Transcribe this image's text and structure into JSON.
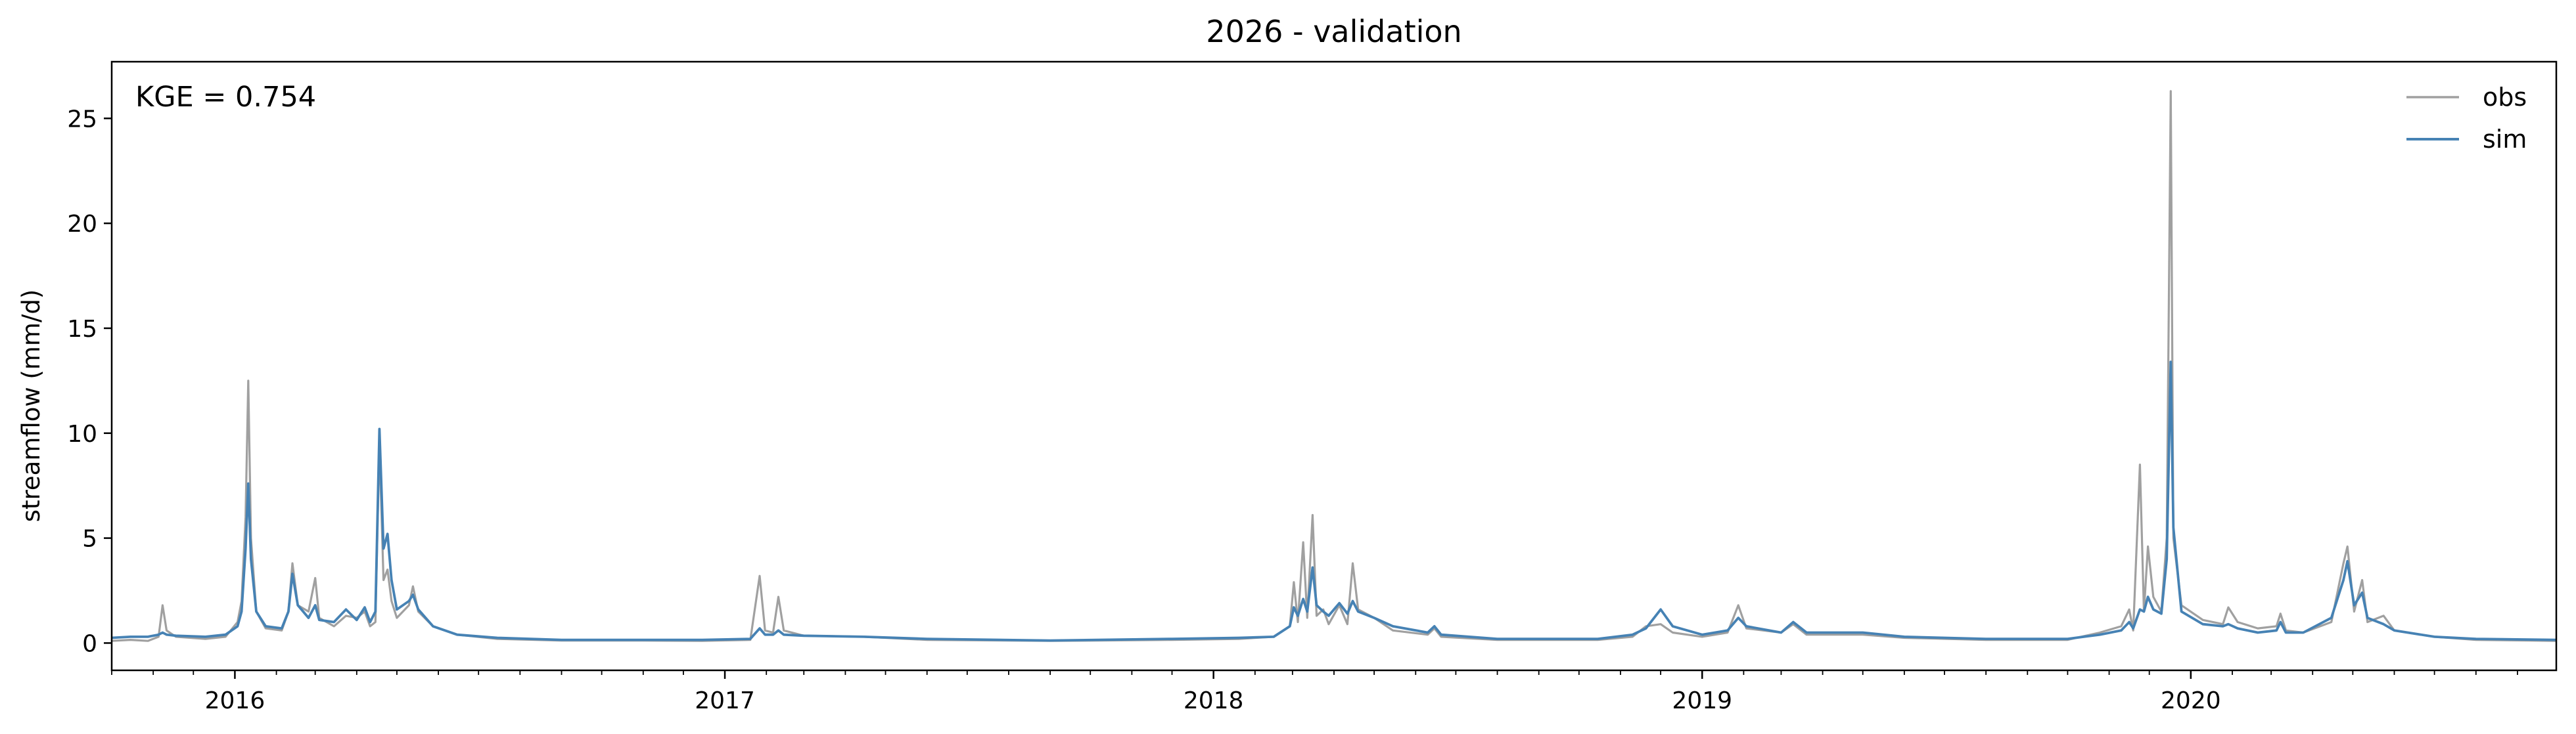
{
  "chart_data": {
    "type": "line",
    "title": "2026 - validation",
    "xlabel": "",
    "ylabel": "streamflow (mm/d)",
    "annotation": "KGE = 0.754",
    "xlim": [
      "2015-10-01",
      "2020-09-30"
    ],
    "ylim": [
      -1.3,
      27.7
    ],
    "y_ticks": [
      0,
      5,
      10,
      15,
      20,
      25
    ],
    "x_major_ticks": [
      "2016-01-01",
      "2017-01-01",
      "2018-01-01",
      "2019-01-01",
      "2020-01-01"
    ],
    "x_major_labels": [
      "2016",
      "2017",
      "2018",
      "2019",
      "2020"
    ],
    "x_minor_tick_months": [
      1,
      2,
      3,
      4,
      5,
      6,
      7,
      8,
      9,
      10,
      11,
      12
    ],
    "grid": false,
    "legend_location": "top-right",
    "series": [
      {
        "name": "obs",
        "color": "#a0a0a0",
        "points": [
          [
            "2015-10-01",
            0.1
          ],
          [
            "2015-10-15",
            0.15
          ],
          [
            "2015-10-28",
            0.1
          ],
          [
            "2015-11-05",
            0.3
          ],
          [
            "2015-11-08",
            1.8
          ],
          [
            "2015-11-11",
            0.6
          ],
          [
            "2015-11-18",
            0.3
          ],
          [
            "2015-12-10",
            0.2
          ],
          [
            "2015-12-25",
            0.3
          ],
          [
            "2016-01-03",
            1.0
          ],
          [
            "2016-01-06",
            2.0
          ],
          [
            "2016-01-09",
            6.0
          ],
          [
            "2016-01-11",
            12.5
          ],
          [
            "2016-01-13",
            5.0
          ],
          [
            "2016-01-17",
            1.5
          ],
          [
            "2016-01-24",
            0.7
          ],
          [
            "2016-02-05",
            0.6
          ],
          [
            "2016-02-10",
            1.5
          ],
          [
            "2016-02-13",
            3.8
          ],
          [
            "2016-02-17",
            1.8
          ],
          [
            "2016-02-25",
            1.5
          ],
          [
            "2016-03-01",
            3.1
          ],
          [
            "2016-03-04",
            1.2
          ],
          [
            "2016-03-15",
            0.8
          ],
          [
            "2016-03-24",
            1.3
          ],
          [
            "2016-04-01",
            1.2
          ],
          [
            "2016-04-07",
            1.5
          ],
          [
            "2016-04-11",
            0.8
          ],
          [
            "2016-04-15",
            1.0
          ],
          [
            "2016-04-18",
            9.5
          ],
          [
            "2016-04-21",
            3.0
          ],
          [
            "2016-04-24",
            3.5
          ],
          [
            "2016-04-27",
            2.0
          ],
          [
            "2016-05-01",
            1.2
          ],
          [
            "2016-05-10",
            1.8
          ],
          [
            "2016-05-13",
            2.7
          ],
          [
            "2016-05-17",
            1.5
          ],
          [
            "2016-05-28",
            0.8
          ],
          [
            "2016-06-15",
            0.4
          ],
          [
            "2016-07-15",
            0.2
          ],
          [
            "2016-09-01",
            0.12
          ],
          [
            "2016-11-01",
            0.12
          ],
          [
            "2016-12-15",
            0.1
          ],
          [
            "2017-01-20",
            0.15
          ],
          [
            "2017-01-27",
            3.2
          ],
          [
            "2017-01-31",
            0.6
          ],
          [
            "2017-02-06",
            0.5
          ],
          [
            "2017-02-10",
            2.2
          ],
          [
            "2017-02-14",
            0.6
          ],
          [
            "2017-03-01",
            0.35
          ],
          [
            "2017-04-15",
            0.3
          ],
          [
            "2017-06-01",
            0.15
          ],
          [
            "2017-09-01",
            0.1
          ],
          [
            "2017-12-01",
            0.15
          ],
          [
            "2018-01-20",
            0.2
          ],
          [
            "2018-02-15",
            0.3
          ],
          [
            "2018-02-27",
            0.8
          ],
          [
            "2018-03-02",
            2.9
          ],
          [
            "2018-03-05",
            1.0
          ],
          [
            "2018-03-09",
            4.8
          ],
          [
            "2018-03-12",
            1.2
          ],
          [
            "2018-03-16",
            6.1
          ],
          [
            "2018-03-19",
            1.3
          ],
          [
            "2018-03-24",
            1.6
          ],
          [
            "2018-03-28",
            0.9
          ],
          [
            "2018-04-05",
            1.8
          ],
          [
            "2018-04-11",
            0.9
          ],
          [
            "2018-04-15",
            3.8
          ],
          [
            "2018-04-19",
            1.6
          ],
          [
            "2018-05-01",
            1.2
          ],
          [
            "2018-05-15",
            0.6
          ],
          [
            "2018-06-10",
            0.4
          ],
          [
            "2018-06-15",
            0.7
          ],
          [
            "2018-06-20",
            0.3
          ],
          [
            "2018-08-01",
            0.15
          ],
          [
            "2018-10-15",
            0.15
          ],
          [
            "2018-11-10",
            0.3
          ],
          [
            "2018-11-20",
            0.8
          ],
          [
            "2018-12-01",
            0.9
          ],
          [
            "2018-12-10",
            0.5
          ],
          [
            "2019-01-01",
            0.3
          ],
          [
            "2019-01-20",
            0.5
          ],
          [
            "2019-01-28",
            1.8
          ],
          [
            "2019-02-03",
            0.7
          ],
          [
            "2019-03-01",
            0.5
          ],
          [
            "2019-03-10",
            0.9
          ],
          [
            "2019-03-20",
            0.4
          ],
          [
            "2019-05-01",
            0.4
          ],
          [
            "2019-06-01",
            0.25
          ],
          [
            "2019-08-01",
            0.15
          ],
          [
            "2019-10-01",
            0.15
          ],
          [
            "2019-10-25",
            0.5
          ],
          [
            "2019-11-10",
            0.8
          ],
          [
            "2019-11-16",
            1.6
          ],
          [
            "2019-11-19",
            0.6
          ],
          [
            "2019-11-24",
            8.5
          ],
          [
            "2019-11-27",
            1.5
          ],
          [
            "2019-11-30",
            4.6
          ],
          [
            "2019-12-04",
            2.2
          ],
          [
            "2019-12-10",
            1.5
          ],
          [
            "2019-12-14",
            5.0
          ],
          [
            "2019-12-17",
            26.3
          ],
          [
            "2019-12-19",
            5.0
          ],
          [
            "2019-12-25",
            1.8
          ],
          [
            "2020-01-10",
            1.1
          ],
          [
            "2020-01-25",
            0.9
          ],
          [
            "2020-01-29",
            1.7
          ],
          [
            "2020-02-05",
            1.0
          ],
          [
            "2020-02-20",
            0.7
          ],
          [
            "2020-03-05",
            0.8
          ],
          [
            "2020-03-08",
            1.4
          ],
          [
            "2020-03-12",
            0.6
          ],
          [
            "2020-03-25",
            0.5
          ],
          [
            "2020-04-15",
            1.0
          ],
          [
            "2020-04-24",
            3.8
          ],
          [
            "2020-04-27",
            4.6
          ],
          [
            "2020-05-02",
            1.5
          ],
          [
            "2020-05-08",
            3.0
          ],
          [
            "2020-05-12",
            1.0
          ],
          [
            "2020-05-24",
            1.3
          ],
          [
            "2020-06-01",
            0.6
          ],
          [
            "2020-07-01",
            0.3
          ],
          [
            "2020-08-01",
            0.15
          ],
          [
            "2020-09-30",
            0.1
          ]
        ]
      },
      {
        "name": "sim",
        "color": "#4682b4",
        "points": [
          [
            "2015-10-01",
            0.25
          ],
          [
            "2015-10-15",
            0.3
          ],
          [
            "2015-10-28",
            0.3
          ],
          [
            "2015-11-05",
            0.4
          ],
          [
            "2015-11-08",
            0.5
          ],
          [
            "2015-11-11",
            0.4
          ],
          [
            "2015-11-18",
            0.35
          ],
          [
            "2015-12-10",
            0.3
          ],
          [
            "2015-12-25",
            0.4
          ],
          [
            "2016-01-03",
            0.8
          ],
          [
            "2016-01-06",
            1.5
          ],
          [
            "2016-01-09",
            4.5
          ],
          [
            "2016-01-11",
            7.6
          ],
          [
            "2016-01-13",
            4.0
          ],
          [
            "2016-01-17",
            1.5
          ],
          [
            "2016-01-24",
            0.8
          ],
          [
            "2016-02-05",
            0.7
          ],
          [
            "2016-02-10",
            1.5
          ],
          [
            "2016-02-13",
            3.3
          ],
          [
            "2016-02-17",
            1.8
          ],
          [
            "2016-02-25",
            1.2
          ],
          [
            "2016-03-01",
            1.8
          ],
          [
            "2016-03-04",
            1.1
          ],
          [
            "2016-03-15",
            1.0
          ],
          [
            "2016-03-24",
            1.6
          ],
          [
            "2016-04-01",
            1.1
          ],
          [
            "2016-04-07",
            1.7
          ],
          [
            "2016-04-11",
            1.0
          ],
          [
            "2016-04-15",
            1.5
          ],
          [
            "2016-04-18",
            10.2
          ],
          [
            "2016-04-21",
            4.5
          ],
          [
            "2016-04-24",
            5.2
          ],
          [
            "2016-04-27",
            3.0
          ],
          [
            "2016-05-01",
            1.6
          ],
          [
            "2016-05-10",
            2.0
          ],
          [
            "2016-05-13",
            2.3
          ],
          [
            "2016-05-17",
            1.6
          ],
          [
            "2016-05-28",
            0.8
          ],
          [
            "2016-06-15",
            0.4
          ],
          [
            "2016-07-15",
            0.25
          ],
          [
            "2016-09-01",
            0.15
          ],
          [
            "2016-11-01",
            0.15
          ],
          [
            "2016-12-15",
            0.15
          ],
          [
            "2017-01-20",
            0.2
          ],
          [
            "2017-01-27",
            0.7
          ],
          [
            "2017-01-31",
            0.4
          ],
          [
            "2017-02-06",
            0.4
          ],
          [
            "2017-02-10",
            0.6
          ],
          [
            "2017-02-14",
            0.4
          ],
          [
            "2017-03-01",
            0.35
          ],
          [
            "2017-04-15",
            0.3
          ],
          [
            "2017-06-01",
            0.2
          ],
          [
            "2017-09-01",
            0.12
          ],
          [
            "2017-12-01",
            0.2
          ],
          [
            "2018-01-20",
            0.25
          ],
          [
            "2018-02-15",
            0.3
          ],
          [
            "2018-02-27",
            0.8
          ],
          [
            "2018-03-02",
            1.7
          ],
          [
            "2018-03-05",
            1.3
          ],
          [
            "2018-03-09",
            2.1
          ],
          [
            "2018-03-12",
            1.5
          ],
          [
            "2018-03-16",
            3.6
          ],
          [
            "2018-03-19",
            1.8
          ],
          [
            "2018-03-24",
            1.5
          ],
          [
            "2018-03-28",
            1.3
          ],
          [
            "2018-04-05",
            1.9
          ],
          [
            "2018-04-11",
            1.4
          ],
          [
            "2018-04-15",
            2.0
          ],
          [
            "2018-04-19",
            1.5
          ],
          [
            "2018-05-01",
            1.2
          ],
          [
            "2018-05-15",
            0.8
          ],
          [
            "2018-06-10",
            0.5
          ],
          [
            "2018-06-15",
            0.8
          ],
          [
            "2018-06-20",
            0.4
          ],
          [
            "2018-08-01",
            0.2
          ],
          [
            "2018-10-15",
            0.2
          ],
          [
            "2018-11-10",
            0.4
          ],
          [
            "2018-11-20",
            0.7
          ],
          [
            "2018-12-01",
            1.6
          ],
          [
            "2018-12-10",
            0.8
          ],
          [
            "2019-01-01",
            0.4
          ],
          [
            "2019-01-20",
            0.6
          ],
          [
            "2019-01-28",
            1.2
          ],
          [
            "2019-02-03",
            0.8
          ],
          [
            "2019-03-01",
            0.5
          ],
          [
            "2019-03-10",
            1.0
          ],
          [
            "2019-03-20",
            0.5
          ],
          [
            "2019-05-01",
            0.5
          ],
          [
            "2019-06-01",
            0.3
          ],
          [
            "2019-08-01",
            0.2
          ],
          [
            "2019-10-01",
            0.2
          ],
          [
            "2019-10-25",
            0.4
          ],
          [
            "2019-11-10",
            0.6
          ],
          [
            "2019-11-16",
            1.0
          ],
          [
            "2019-11-19",
            0.7
          ],
          [
            "2019-11-24",
            1.6
          ],
          [
            "2019-11-27",
            1.5
          ],
          [
            "2019-11-30",
            2.2
          ],
          [
            "2019-12-04",
            1.6
          ],
          [
            "2019-12-10",
            1.4
          ],
          [
            "2019-12-14",
            4.0
          ],
          [
            "2019-12-17",
            13.4
          ],
          [
            "2019-12-19",
            5.5
          ],
          [
            "2019-12-25",
            1.5
          ],
          [
            "2020-01-10",
            0.9
          ],
          [
            "2020-01-25",
            0.8
          ],
          [
            "2020-01-29",
            0.9
          ],
          [
            "2020-02-05",
            0.7
          ],
          [
            "2020-02-20",
            0.5
          ],
          [
            "2020-03-05",
            0.6
          ],
          [
            "2020-03-08",
            1.0
          ],
          [
            "2020-03-12",
            0.5
          ],
          [
            "2020-03-25",
            0.5
          ],
          [
            "2020-04-15",
            1.2
          ],
          [
            "2020-04-24",
            3.0
          ],
          [
            "2020-04-27",
            3.9
          ],
          [
            "2020-05-02",
            1.8
          ],
          [
            "2020-05-08",
            2.4
          ],
          [
            "2020-05-12",
            1.2
          ],
          [
            "2020-05-24",
            0.9
          ],
          [
            "2020-06-01",
            0.6
          ],
          [
            "2020-07-01",
            0.3
          ],
          [
            "2020-08-01",
            0.2
          ],
          [
            "2020-09-30",
            0.15
          ]
        ]
      }
    ]
  }
}
